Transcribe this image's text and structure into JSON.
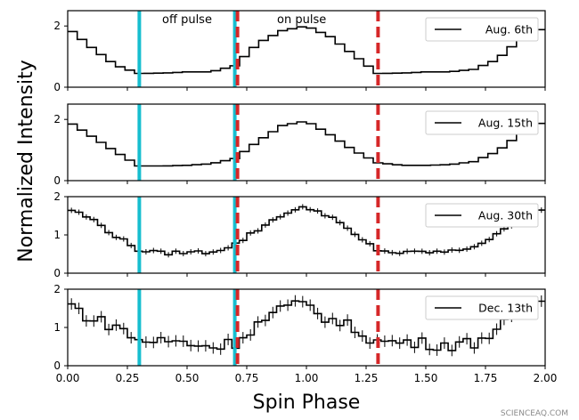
{
  "chart_data": {
    "type": "line",
    "step": true,
    "xlabel": "Spin Phase",
    "ylabel": "Normalized Intensity",
    "xlim": [
      0,
      2
    ],
    "x_ticks": [
      "0.00",
      "0.25",
      "0.50",
      "0.75",
      "1.00",
      "1.25",
      "1.50",
      "1.75",
      "2.00"
    ],
    "x_tick_values": [
      0,
      0.25,
      0.5,
      0.75,
      1.0,
      1.25,
      1.5,
      1.75,
      2.0
    ],
    "grid": false,
    "legend_position": "top-right",
    "annotations": {
      "off_pulse": "off pulse",
      "on_pulse": "on pulse"
    },
    "markers": {
      "solid_cyan": [
        0.3,
        0.7
      ],
      "dashed_red": [
        0.7,
        1.3
      ],
      "cyan_color": "#17becf",
      "red_color": "#d62728"
    },
    "watermark": "SCIENCEAQ.COM",
    "panels": [
      {
        "legend": "Aug. 6th",
        "ylim": [
          0,
          2.5
        ],
        "y_ticks": [
          "0",
          "2"
        ],
        "y_tick_values": [
          0,
          2
        ],
        "errorbars": false,
        "phase": [
          0.0,
          0.1,
          0.2,
          0.3,
          0.4,
          0.5,
          0.6,
          0.7,
          0.8,
          0.9,
          1.0,
          1.1,
          1.2,
          1.3,
          1.4,
          1.5,
          1.6,
          1.7,
          1.8,
          1.9,
          2.0
        ],
        "intensity": [
          1.95,
          1.3,
          0.72,
          0.45,
          0.46,
          0.5,
          0.5,
          0.7,
          1.45,
          1.85,
          2.0,
          1.65,
          1.05,
          0.45,
          0.46,
          0.5,
          0.5,
          0.58,
          0.9,
          1.6,
          1.95
        ]
      },
      {
        "legend": "Aug. 15th",
        "ylim": [
          0,
          2.5
        ],
        "y_ticks": [
          "0",
          "2"
        ],
        "y_tick_values": [
          0,
          2
        ],
        "errorbars": false,
        "phase": [
          0.0,
          0.1,
          0.2,
          0.3,
          0.4,
          0.5,
          0.6,
          0.7,
          0.8,
          0.9,
          1.0,
          1.1,
          1.2,
          1.3,
          1.4,
          1.5,
          1.6,
          1.7,
          1.8,
          1.9,
          2.0
        ],
        "intensity": [
          1.95,
          1.45,
          0.95,
          0.48,
          0.48,
          0.5,
          0.55,
          0.72,
          1.3,
          1.8,
          1.95,
          1.5,
          0.98,
          0.58,
          0.5,
          0.5,
          0.52,
          0.62,
          0.95,
          1.55,
          1.95
        ]
      },
      {
        "legend": "Aug. 30th",
        "ylim": [
          0,
          2
        ],
        "y_ticks": [
          "0",
          "1",
          "2"
        ],
        "y_tick_values": [
          0,
          1,
          2
        ],
        "errorbars": true,
        "phase": [
          0.0,
          0.1,
          0.2,
          0.3,
          0.4,
          0.5,
          0.6,
          0.7,
          0.8,
          0.9,
          1.0,
          1.1,
          1.2,
          1.3,
          1.4,
          1.5,
          1.6,
          1.7,
          1.8,
          1.9,
          2.0
        ],
        "intensity": [
          1.7,
          1.42,
          0.98,
          0.6,
          0.52,
          0.55,
          0.55,
          0.75,
          1.15,
          1.55,
          1.72,
          1.5,
          1.0,
          0.6,
          0.52,
          0.56,
          0.55,
          0.7,
          1.0,
          1.45,
          1.72
        ]
      },
      {
        "legend": "Dec. 13th",
        "ylim": [
          0,
          2
        ],
        "y_ticks": [
          "0",
          "1",
          "2"
        ],
        "y_tick_values": [
          0,
          1,
          2
        ],
        "errorbars": true,
        "phase": [
          0.0,
          0.1,
          0.2,
          0.3,
          0.4,
          0.5,
          0.6,
          0.7,
          0.8,
          0.9,
          1.0,
          1.1,
          1.2,
          1.3,
          1.4,
          1.5,
          1.6,
          1.7,
          1.8,
          1.9,
          2.0
        ],
        "intensity": [
          1.65,
          1.22,
          1.05,
          0.65,
          0.65,
          0.6,
          0.5,
          0.6,
          1.1,
          1.5,
          1.6,
          1.2,
          0.98,
          0.62,
          0.62,
          0.58,
          0.55,
          0.6,
          0.95,
          1.35,
          1.7
        ]
      }
    ]
  }
}
